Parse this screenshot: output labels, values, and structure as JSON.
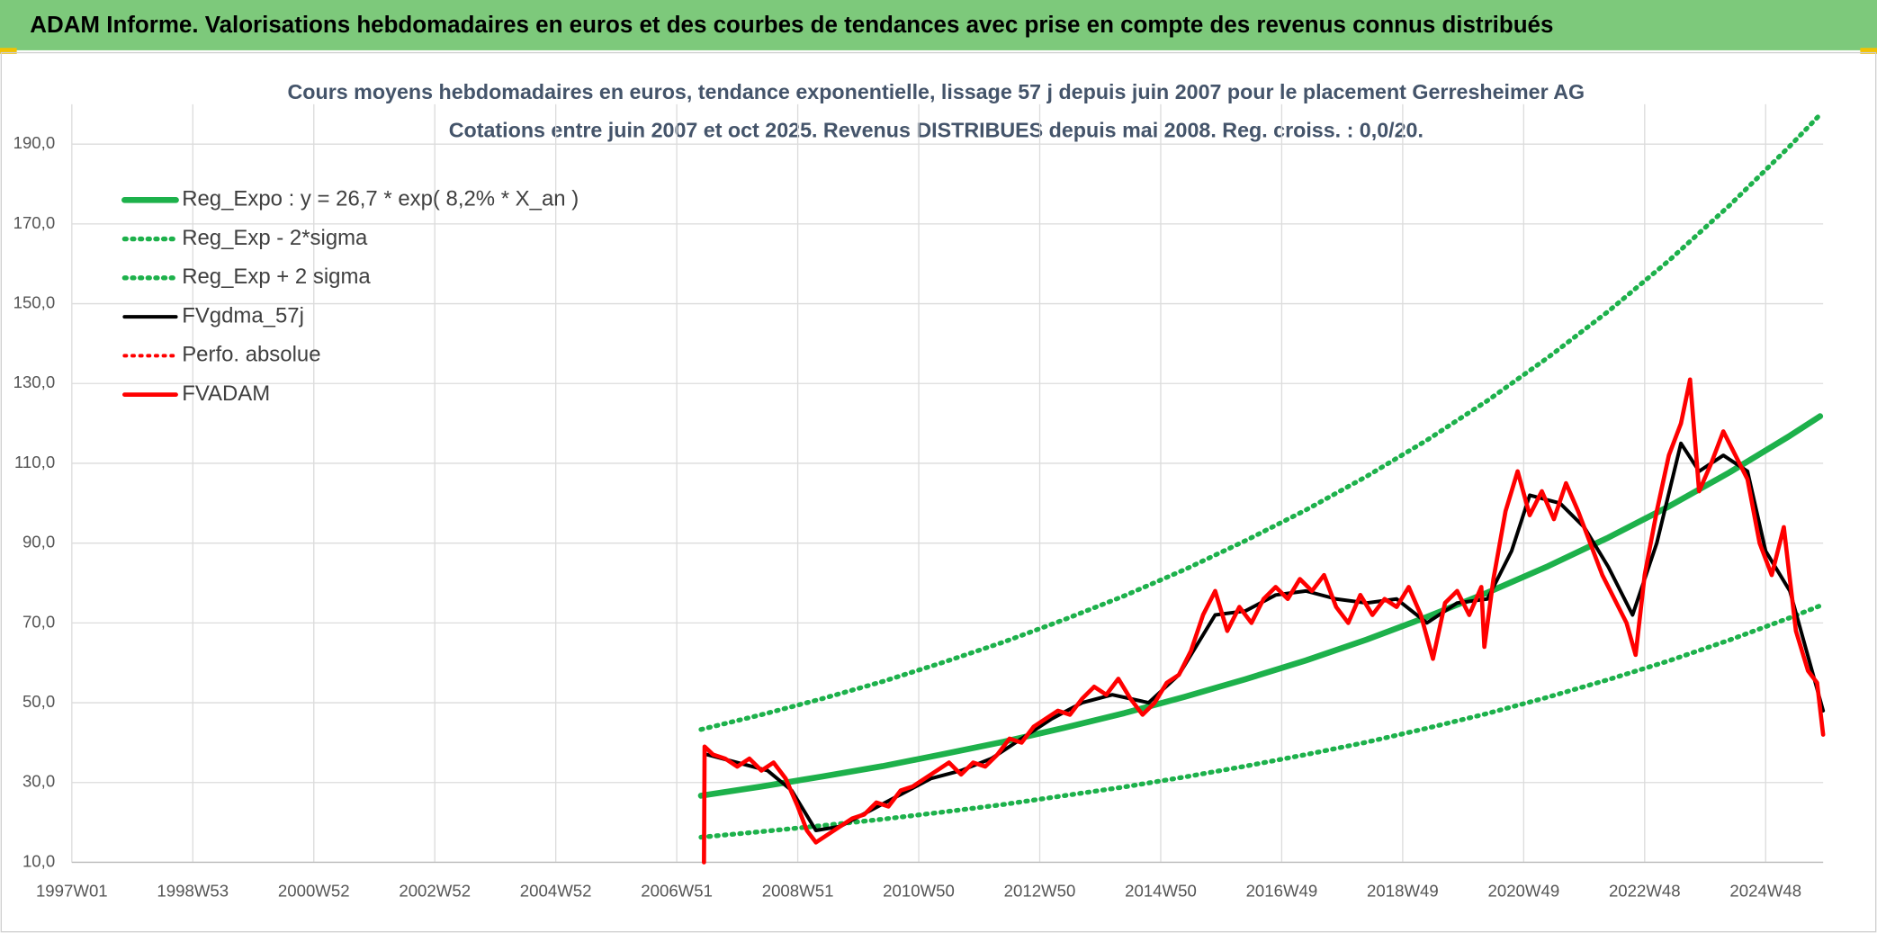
{
  "header": {
    "title": "ADAM Informe. Valorisations hebdomadaires en euros et des courbes de tendances avec prise en compte des revenus connus distribués"
  },
  "chart_data": {
    "type": "line",
    "title": "Cours moyens hebdomadaires en euros, tendance exponentielle, lissage 57 j depuis juin 2007 pour le placement Gerresheimer AG",
    "subtitle": "Cotations entre juin 2007 et oct 2025. Revenus DISTRIBUES depuis mai 2008. Reg. croiss. : 0,0/20.",
    "xlim": [
      1997,
      2025.95
    ],
    "xticks": [
      {
        "value": 1997,
        "label": "1997W01"
      },
      {
        "value": 1999,
        "label": "1998W53"
      },
      {
        "value": 2001,
        "label": "2000W52"
      },
      {
        "value": 2003,
        "label": "2002W52"
      },
      {
        "value": 2005,
        "label": "2004W52"
      },
      {
        "value": 2007,
        "label": "2006W51"
      },
      {
        "value": 2009,
        "label": "2008W51"
      },
      {
        "value": 2011,
        "label": "2010W50"
      },
      {
        "value": 2013,
        "label": "2012W50"
      },
      {
        "value": 2015,
        "label": "2014W50"
      },
      {
        "value": 2017,
        "label": "2016W49"
      },
      {
        "value": 2019,
        "label": "2018W49"
      },
      {
        "value": 2021,
        "label": "2020W49"
      },
      {
        "value": 2023,
        "label": "2022W48"
      },
      {
        "value": 2025,
        "label": "2024W48"
      }
    ],
    "ylim": [
      10,
      200
    ],
    "yticks": [
      {
        "value": 10,
        "label": "10,0"
      },
      {
        "value": 30,
        "label": "30,0"
      },
      {
        "value": 50,
        "label": "50,0"
      },
      {
        "value": 70,
        "label": "70,0"
      },
      {
        "value": 90,
        "label": "90,0"
      },
      {
        "value": 110,
        "label": "110,0"
      },
      {
        "value": 130,
        "label": "130,0"
      },
      {
        "value": 150,
        "label": "150,0"
      },
      {
        "value": 170,
        "label": "170,0"
      },
      {
        "value": 190,
        "label": "190,0"
      }
    ],
    "grid": true,
    "legend": "top-left",
    "series": [
      {
        "name": "Reg_Expo : y = 26,7 * exp( 8,2% *  X_an )",
        "color": "#1db14b",
        "style": "solid",
        "x": [
          2007.4,
          2008.4,
          2009.4,
          2010.4,
          2011.4,
          2012.4,
          2013.4,
          2014.4,
          2015.4,
          2016.4,
          2017.4,
          2018.4,
          2019.4,
          2020.4,
          2021.4,
          2022.4,
          2023.4,
          2024.4,
          2025.4,
          2025.9
        ],
        "values": [
          26.7,
          29.0,
          31.5,
          34.1,
          37.1,
          40.2,
          43.7,
          47.4,
          51.5,
          55.9,
          60.6,
          65.8,
          71.5,
          77.6,
          84.2,
          91.4,
          99.2,
          107.7,
          116.9,
          121.8
        ]
      },
      {
        "name": "Reg_Exp - 2*sigma",
        "color": "#1db14b",
        "style": "dotted",
        "x": [
          2007.4,
          2008.4,
          2009.4,
          2010.4,
          2011.4,
          2012.4,
          2013.4,
          2014.4,
          2015.4,
          2016.4,
          2017.4,
          2018.4,
          2019.4,
          2020.4,
          2021.4,
          2022.4,
          2023.4,
          2024.4,
          2025.4,
          2025.9
        ],
        "values": [
          16.3,
          17.7,
          19.2,
          20.8,
          22.6,
          24.5,
          26.7,
          28.9,
          31.4,
          34.1,
          37.0,
          40.1,
          43.6,
          47.3,
          51.4,
          55.8,
          60.5,
          65.7,
          71.3,
          74.3
        ]
      },
      {
        "name": "Reg_Exp + 2 sigma",
        "color": "#1db14b",
        "style": "dotted",
        "x": [
          2007.4,
          2008.4,
          2009.4,
          2010.4,
          2011.4,
          2012.4,
          2013.4,
          2014.4,
          2015.4,
          2016.4,
          2017.4,
          2018.4,
          2019.4,
          2020.4,
          2021.4,
          2022.4,
          2023.4,
          2024.4,
          2025.4,
          2025.9
        ],
        "values": [
          43.3,
          47.0,
          51.0,
          55.3,
          60.1,
          65.2,
          70.8,
          76.8,
          83.4,
          90.6,
          98.3,
          106.7,
          115.8,
          125.7,
          136.5,
          148.1,
          160.8,
          174.6,
          189.5,
          197.4
        ]
      },
      {
        "name": "FVgdma_57j",
        "color": "#000000",
        "style": "solid",
        "x": [
          2007.5,
          2008.0,
          2008.5,
          2008.9,
          2009.3,
          2009.7,
          2010.2,
          2010.7,
          2011.2,
          2011.7,
          2012.2,
          2012.7,
          2013.2,
          2013.7,
          2014.2,
          2014.8,
          2015.3,
          2015.9,
          2016.4,
          2016.9,
          2017.4,
          2017.9,
          2018.4,
          2018.9,
          2019.4,
          2019.9,
          2020.4,
          2020.8,
          2021.1,
          2021.6,
          2022.0,
          2022.4,
          2022.8,
          2023.2,
          2023.6,
          2023.9,
          2024.3,
          2024.7,
          2025.0,
          2025.4,
          2025.95
        ],
        "values": [
          37,
          35,
          33,
          28,
          18,
          19,
          23,
          27,
          31,
          33,
          36,
          41,
          46,
          50,
          52,
          50,
          57,
          72,
          73,
          77,
          78,
          76,
          75,
          76,
          70,
          75,
          76,
          88,
          102,
          100,
          94,
          84,
          72,
          90,
          115,
          108,
          112,
          108,
          88,
          78,
          48
        ]
      },
      {
        "name": "Perfo. absolue",
        "color": "#ff0000",
        "style": "dotted",
        "x": [],
        "values": []
      },
      {
        "name": "FVADAM",
        "color": "#ff0000",
        "style": "solid",
        "x": [
          2007.45,
          2007.46,
          2007.6,
          2007.8,
          2008.0,
          2008.2,
          2008.4,
          2008.6,
          2008.8,
          2009.0,
          2009.15,
          2009.3,
          2009.5,
          2009.7,
          2009.9,
          2010.1,
          2010.3,
          2010.5,
          2010.7,
          2010.9,
          2011.1,
          2011.3,
          2011.5,
          2011.7,
          2011.9,
          2012.1,
          2012.3,
          2012.5,
          2012.7,
          2012.9,
          2013.1,
          2013.3,
          2013.5,
          2013.7,
          2013.9,
          2014.1,
          2014.3,
          2014.5,
          2014.7,
          2014.9,
          2015.1,
          2015.3,
          2015.5,
          2015.7,
          2015.9,
          2016.1,
          2016.3,
          2016.5,
          2016.7,
          2016.9,
          2017.1,
          2017.3,
          2017.5,
          2017.7,
          2017.9,
          2018.1,
          2018.3,
          2018.5,
          2018.7,
          2018.9,
          2019.1,
          2019.3,
          2019.5,
          2019.7,
          2019.9,
          2020.1,
          2020.3,
          2020.35,
          2020.5,
          2020.7,
          2020.9,
          2021.1,
          2021.3,
          2021.5,
          2021.7,
          2021.9,
          2022.1,
          2022.3,
          2022.5,
          2022.7,
          2022.85,
          2023.0,
          2023.2,
          2023.4,
          2023.6,
          2023.75,
          2023.9,
          2024.1,
          2024.3,
          2024.5,
          2024.7,
          2024.9,
          2025.1,
          2025.3,
          2025.5,
          2025.7,
          2025.85,
          2025.95
        ],
        "values": [
          10,
          39,
          37,
          36,
          34,
          36,
          33,
          35,
          31,
          24,
          18,
          15,
          17,
          19,
          21,
          22,
          25,
          24,
          28,
          29,
          31,
          33,
          35,
          32,
          35,
          34,
          37,
          41,
          40,
          44,
          46,
          48,
          47,
          51,
          54,
          52,
          56,
          51,
          47,
          50,
          55,
          57,
          63,
          72,
          78,
          68,
          74,
          70,
          76,
          79,
          76,
          81,
          78,
          82,
          74,
          70,
          77,
          72,
          76,
          74,
          79,
          72,
          61,
          75,
          78,
          72,
          79,
          64,
          81,
          98,
          108,
          97,
          103,
          96,
          105,
          98,
          90,
          82,
          76,
          70,
          62,
          82,
          98,
          112,
          120,
          131,
          103,
          110,
          118,
          112,
          106,
          90,
          82,
          94,
          68,
          58,
          55,
          42
        ]
      }
    ]
  }
}
